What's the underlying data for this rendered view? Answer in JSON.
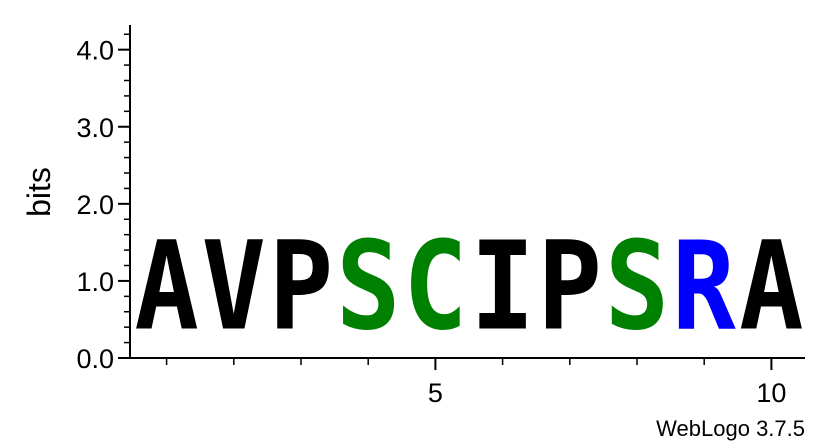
{
  "chart_data": {
    "type": "sequence-logo",
    "ylabel": "bits",
    "ylim": [
      0,
      4.32
    ],
    "y_ticks": [
      {
        "value": 0.0,
        "label": "0.0"
      },
      {
        "value": 1.0,
        "label": "1.0"
      },
      {
        "value": 2.0,
        "label": "2.0"
      },
      {
        "value": 3.0,
        "label": "3.0"
      },
      {
        "value": 4.0,
        "label": "4.0"
      }
    ],
    "x_ticks": [
      {
        "value": 5,
        "label": "5"
      },
      {
        "value": 10,
        "label": "10"
      }
    ],
    "positions": [
      {
        "pos": 1,
        "letter": "A",
        "bits": 1.85,
        "color": "#000000"
      },
      {
        "pos": 2,
        "letter": "V",
        "bits": 1.85,
        "color": "#000000"
      },
      {
        "pos": 3,
        "letter": "P",
        "bits": 1.85,
        "color": "#000000"
      },
      {
        "pos": 4,
        "letter": "S",
        "bits": 1.85,
        "color": "#008000"
      },
      {
        "pos": 5,
        "letter": "C",
        "bits": 1.85,
        "color": "#008000"
      },
      {
        "pos": 6,
        "letter": "I",
        "bits": 1.85,
        "color": "#000000"
      },
      {
        "pos": 7,
        "letter": "P",
        "bits": 1.85,
        "color": "#000000"
      },
      {
        "pos": 8,
        "letter": "S",
        "bits": 1.85,
        "color": "#008000"
      },
      {
        "pos": 9,
        "letter": "R",
        "bits": 1.85,
        "color": "#0000ff"
      },
      {
        "pos": 10,
        "letter": "A",
        "bits": 1.85,
        "color": "#000000"
      }
    ]
  },
  "credit": "WebLogo 3.7.5"
}
